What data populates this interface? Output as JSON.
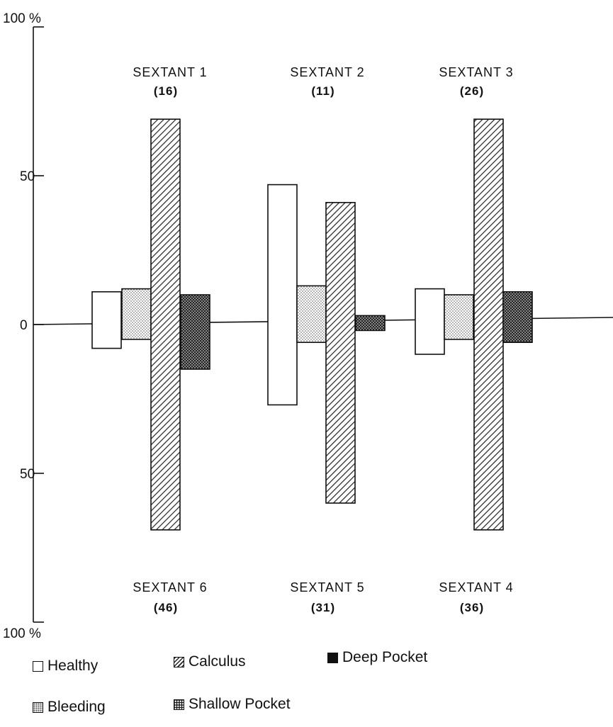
{
  "chart_data": {
    "type": "bar",
    "orientation": "vertical bars around a central zero line (upper and lower jaw)",
    "y_axis": {
      "range": [
        -100,
        100
      ],
      "tick_labels": [
        {
          "value": 100,
          "label": "100 %"
        },
        {
          "value": 50,
          "label": "50"
        },
        {
          "value": 0,
          "label": "0"
        },
        {
          "value": -50,
          "label": "50"
        },
        {
          "value": -100,
          "label": "100 %"
        }
      ]
    },
    "series": [
      {
        "name": "Healthy",
        "key": "healthy"
      },
      {
        "name": "Bleeding",
        "key": "bleeding"
      },
      {
        "name": "Calculus",
        "key": "calculus"
      },
      {
        "name": "Shallow Pocket",
        "key": "shallow"
      },
      {
        "name": "Deep Pocket",
        "key": "deep"
      }
    ],
    "groups": [
      {
        "upper": {
          "label": "SEXTANT 1",
          "count": "(16)"
        },
        "lower": {
          "label": "SEXTANT 6",
          "count": "(46)"
        },
        "values": {
          "healthy": [
            11,
            -8
          ],
          "bleeding": [
            12,
            -5
          ],
          "calculus": [
            69,
            -69
          ],
          "shallow": [
            10,
            -15
          ]
        }
      },
      {
        "upper": {
          "label": "SEXTANT 2",
          "count": "(11)"
        },
        "lower": {
          "label": "SEXTANT 5",
          "count": "(31)"
        },
        "values": {
          "healthy": [
            47,
            -27
          ],
          "bleeding": [
            13,
            -6
          ],
          "calculus": [
            41,
            -60
          ],
          "shallow": [
            3,
            -2
          ]
        }
      },
      {
        "upper": {
          "label": "SEXTANT 3",
          "count": "(26)"
        },
        "lower": {
          "label": "SEXTANT 4",
          "count": "(36)"
        },
        "values": {
          "healthy": [
            12,
            -10
          ],
          "bleeding": [
            10,
            -5
          ],
          "calculus": [
            69,
            -69
          ],
          "shallow": [
            11,
            -6
          ]
        }
      }
    ],
    "legend": {
      "placement": "bottom-left",
      "items": [
        {
          "label": "Healthy",
          "key": "healthy"
        },
        {
          "label": "Calculus",
          "key": "calculus"
        },
        {
          "label": "Deep Pocket",
          "key": "deep"
        },
        {
          "label": "Bleeding",
          "key": "bleeding"
        },
        {
          "label": "Shallow Pocket",
          "key": "shallow"
        }
      ]
    },
    "grid": false,
    "colors": {
      "ink": "#111111",
      "background": "#ffffff"
    }
  }
}
